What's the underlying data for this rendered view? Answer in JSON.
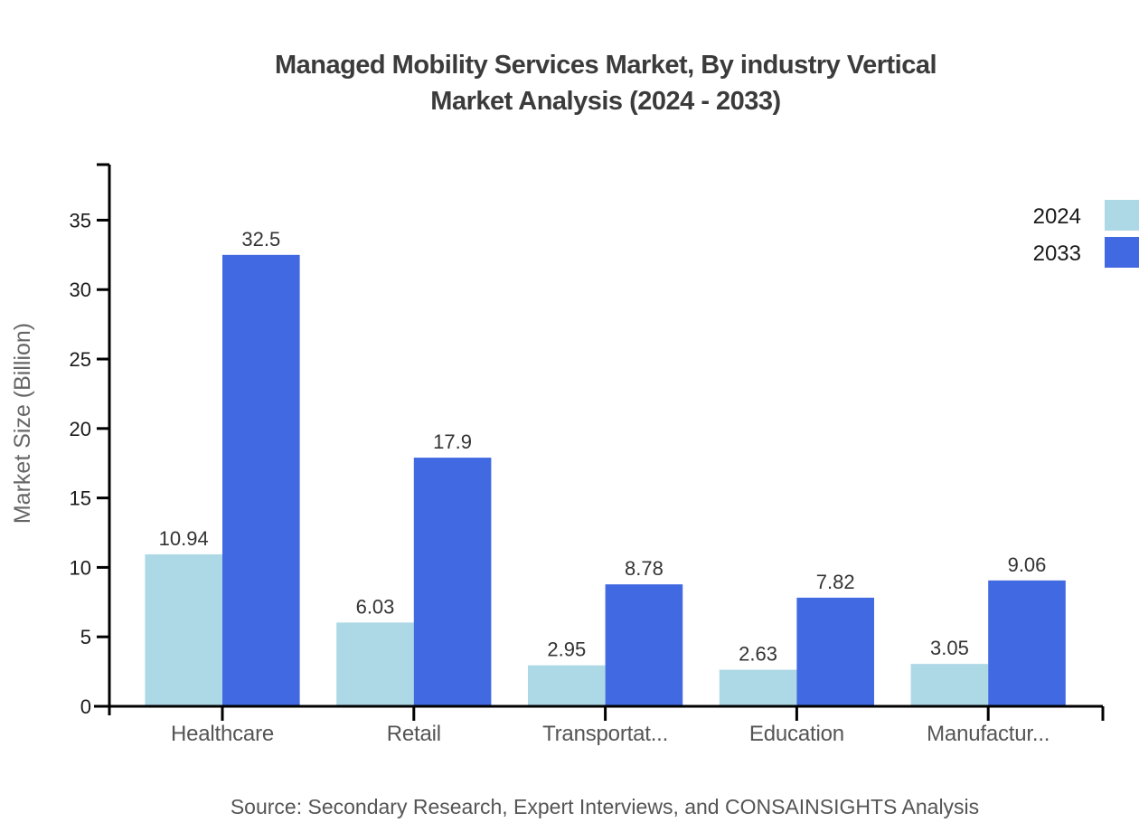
{
  "chart_data": {
    "type": "bar",
    "title": "Managed Mobility Services Market, By industry Vertical Market Analysis (2024 - 2033)",
    "title_lines": [
      "Managed Mobility Services Market, By industry Vertical",
      "Market Analysis (2024 - 2033)"
    ],
    "categories": [
      "Healthcare",
      "Retail",
      "Transportat...",
      "Education",
      "Manufactur..."
    ],
    "series": [
      {
        "name": "2024",
        "color": "#ADD8E6",
        "values": [
          10.94,
          6.03,
          2.95,
          2.63,
          3.05
        ]
      },
      {
        "name": "2033",
        "color": "#4169E1",
        "values": [
          32.5,
          17.9,
          8.78,
          7.82,
          9.06
        ]
      }
    ],
    "xlabel": "",
    "ylabel": "Market Size (Billion)",
    "yticks": [
      0,
      5,
      10,
      15,
      20,
      25,
      30,
      35
    ],
    "ylim": [
      0,
      39
    ],
    "grid": false,
    "legend_position": "top-right",
    "value_labels_shown": true,
    "source": "Source: Secondary Research, Expert Interviews, and CONSAINSIGHTS Analysis"
  }
}
